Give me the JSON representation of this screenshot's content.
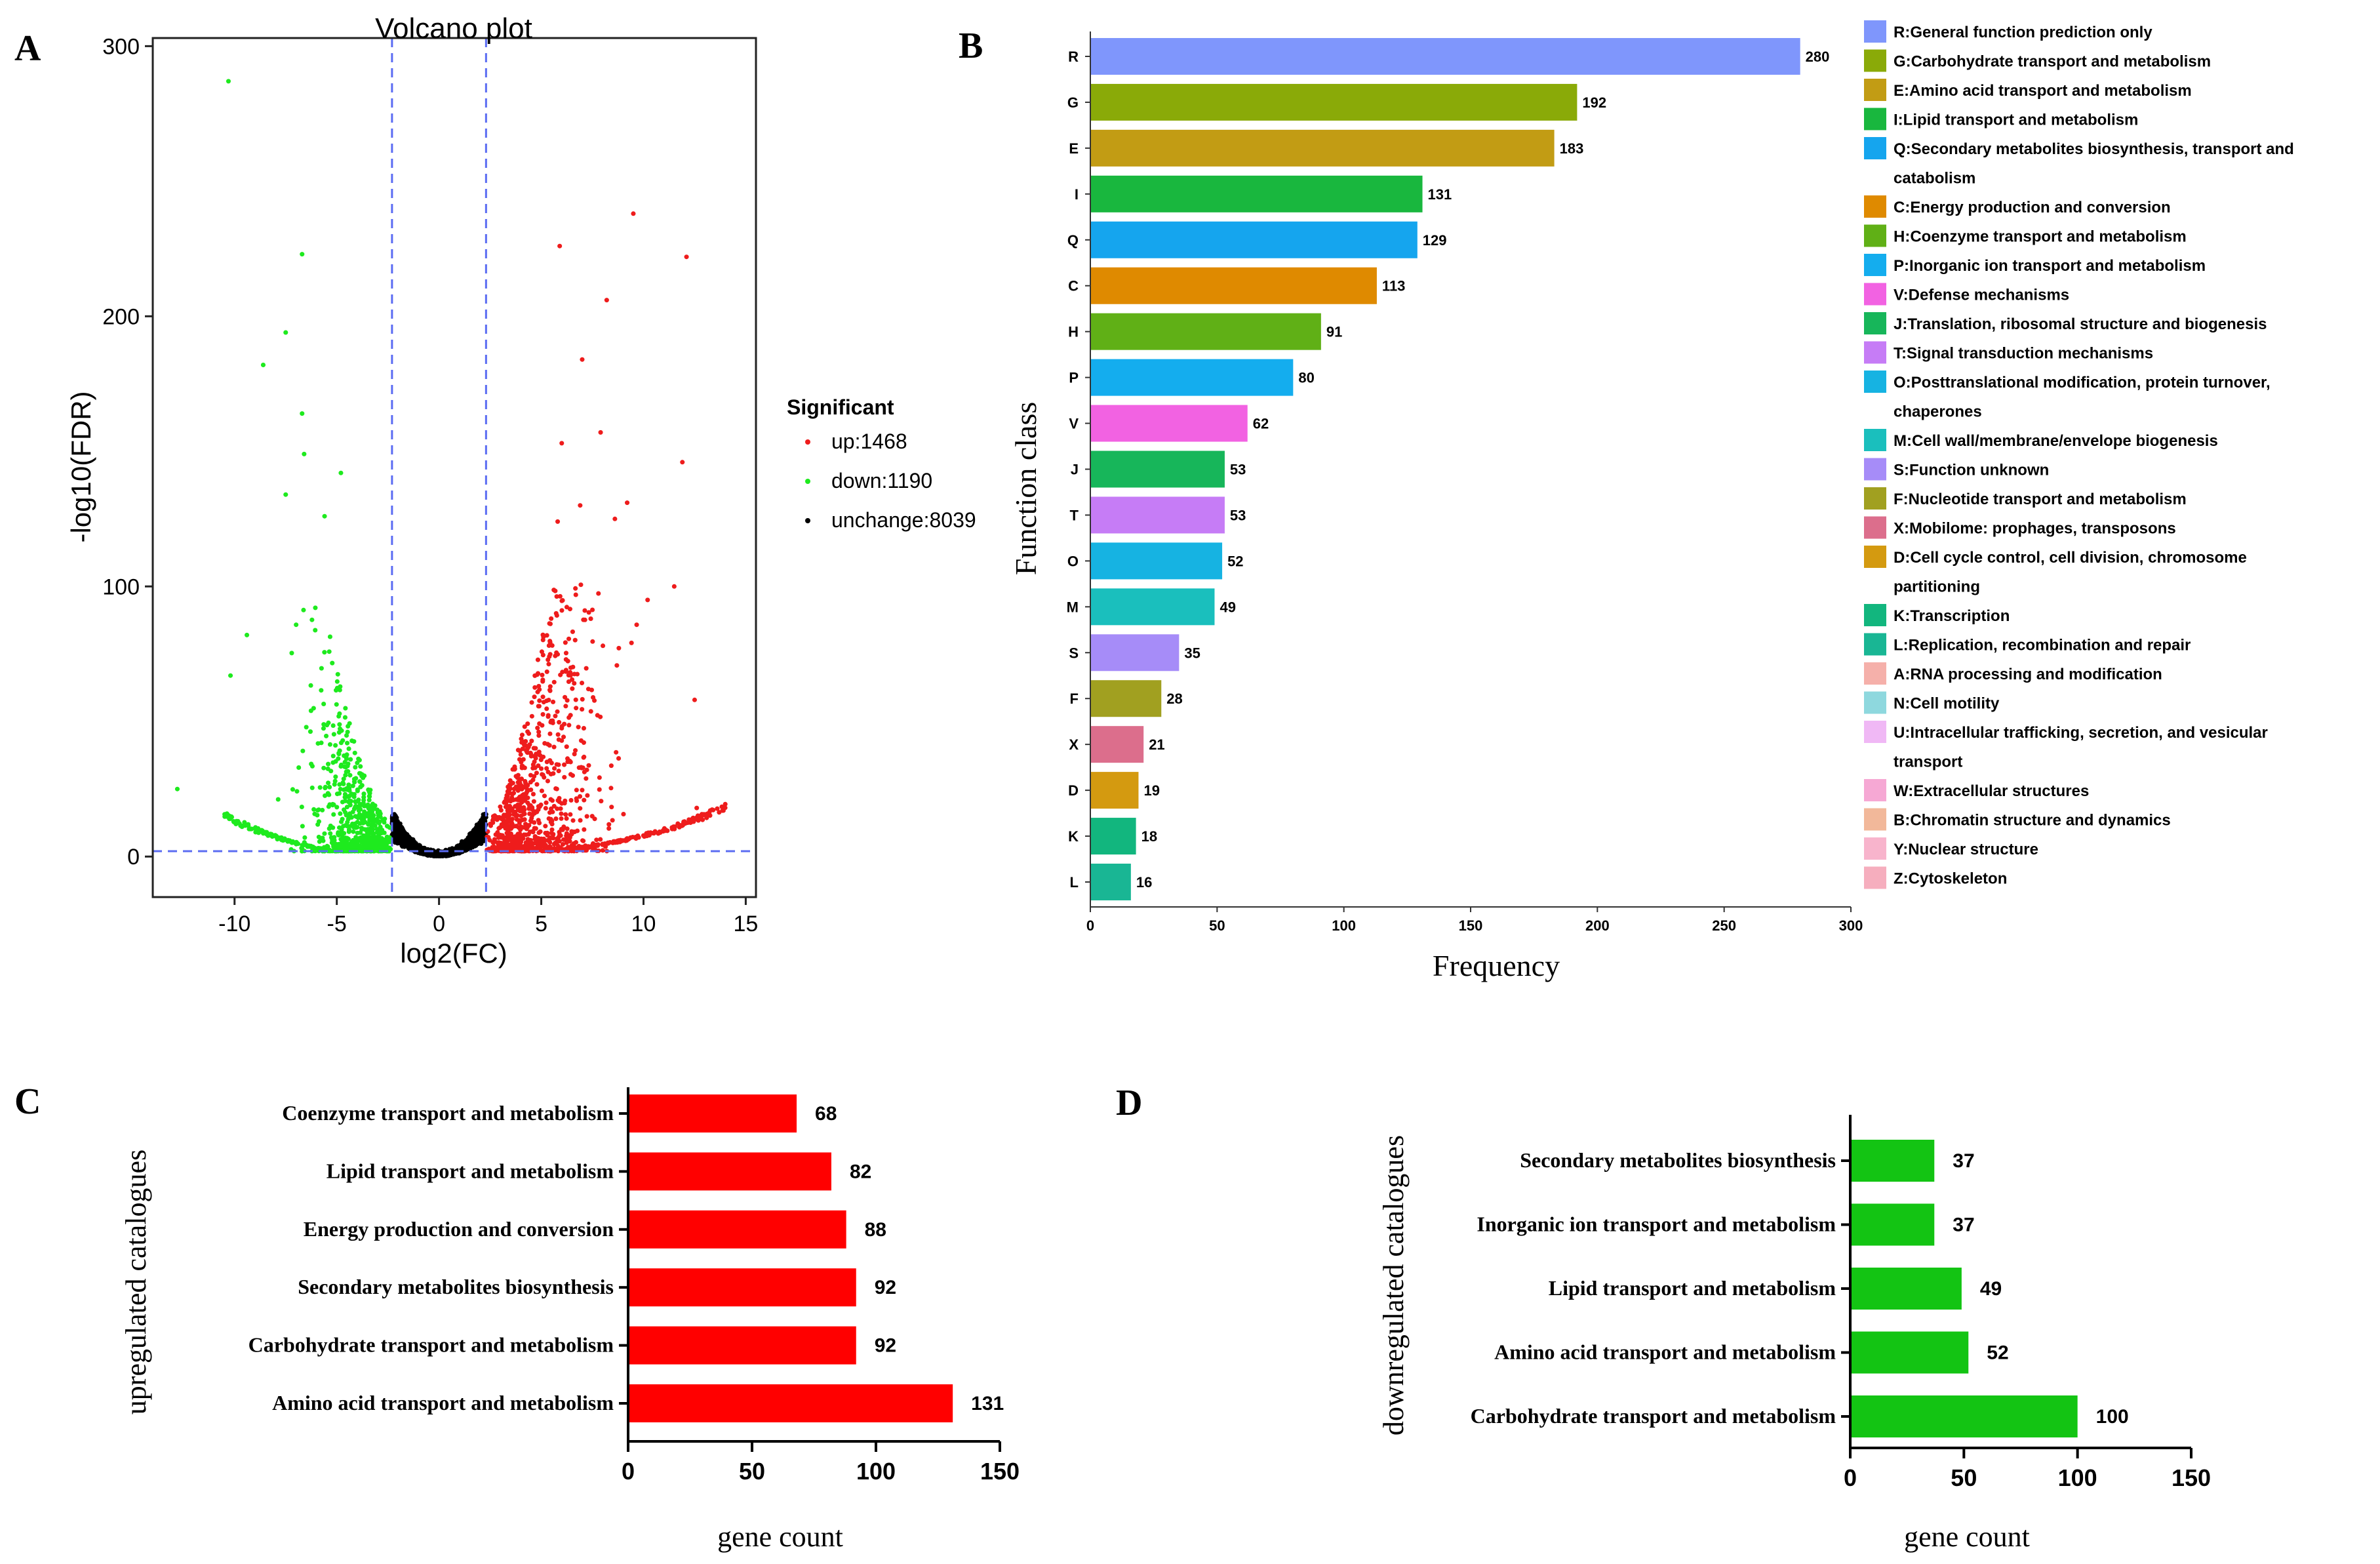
{
  "panels": {
    "a": "A",
    "b": "B",
    "c": "C",
    "d": "D"
  },
  "chart_data": [
    {
      "id": "volcano",
      "type": "scatter",
      "title": "Volcano plot",
      "xlabel": "log2(FC)",
      "ylabel": "-log10(FDR)",
      "xlim": [
        -14,
        15.5
      ],
      "ylim": [
        -15,
        303
      ],
      "xticks": [
        -10,
        -5,
        0,
        5,
        10,
        15
      ],
      "yticks": [
        0,
        100,
        200,
        300
      ],
      "thresholds": {
        "x": [
          -2.3,
          2.3
        ],
        "y": 2
      },
      "legend": {
        "title": "Significant",
        "items": [
          {
            "label": "up:1468",
            "color": "#ee1c1c"
          },
          {
            "label": "down:1190",
            "color": "#1eea1e"
          },
          {
            "label": "unchange:8039",
            "color": "#000000"
          }
        ]
      },
      "series": [
        {
          "name": "up",
          "count": 1468,
          "color": "#ee1c1c",
          "highlights": [
            [
              9.5,
              238
            ],
            [
              5.9,
              226
            ],
            [
              12.1,
              222
            ],
            [
              8.2,
              206
            ],
            [
              7,
              184
            ],
            [
              7.9,
              157
            ],
            [
              6,
              153
            ],
            [
              11.9,
              146
            ],
            [
              9.2,
              131
            ],
            [
              6.9,
              130
            ],
            [
              8.6,
              125
            ],
            [
              5.8,
              124
            ],
            [
              11.5,
              100
            ],
            [
              10.2,
              95
            ],
            [
              12.5,
              58
            ],
            [
              12.6,
              18
            ]
          ]
        },
        {
          "name": "down",
          "count": 1190,
          "color": "#1eea1e",
          "highlights": [
            [
              -10.3,
              287
            ],
            [
              -6.7,
              223
            ],
            [
              -7.5,
              194
            ],
            [
              -8.6,
              182
            ],
            [
              -6.7,
              164
            ],
            [
              -6.6,
              149
            ],
            [
              -4.8,
              142
            ],
            [
              -5.6,
              126
            ],
            [
              -7.5,
              134
            ],
            [
              -12.8,
              25
            ],
            [
              -10.2,
              67
            ],
            [
              -9.4,
              82
            ]
          ]
        },
        {
          "name": "unchange",
          "count": 8039,
          "color": "#000000"
        }
      ]
    },
    {
      "id": "cog",
      "type": "bar",
      "orientation": "horizontal",
      "xlabel": "Frequency",
      "ylabel": "Function class",
      "xlim": [
        0,
        300
      ],
      "xticks": [
        0,
        50,
        100,
        150,
        200,
        250,
        300
      ],
      "categories": [
        "R",
        "G",
        "E",
        "I",
        "Q",
        "C",
        "H",
        "P",
        "V",
        "J",
        "T",
        "O",
        "M",
        "S",
        "F",
        "X",
        "D",
        "K",
        "L"
      ],
      "values": [
        280,
        192,
        183,
        131,
        129,
        113,
        91,
        80,
        62,
        53,
        53,
        52,
        49,
        35,
        28,
        21,
        19,
        18,
        16
      ],
      "colors": [
        "#7f96fc",
        "#8aaa08",
        "#c29c14",
        "#19b73e",
        "#15a5ee",
        "#df8a00",
        "#60b016",
        "#14adee",
        "#f262e2",
        "#17b65a",
        "#c67cf6",
        "#16b3e2",
        "#1abfbd",
        "#a68cf8",
        "#a1a020",
        "#dc6e8c",
        "#d49a10",
        "#12b67e",
        "#19b694"
      ],
      "legend": [
        {
          "lines": [
            "R:General function prediction only"
          ],
          "color": "#7f96fc"
        },
        {
          "lines": [
            "G:Carbohydrate transport and metabolism"
          ],
          "color": "#8aaa08"
        },
        {
          "lines": [
            "E:Amino acid transport and metabolism"
          ],
          "color": "#c29c14"
        },
        {
          "lines": [
            "I:Lipid transport and metabolism"
          ],
          "color": "#19b73e"
        },
        {
          "lines": [
            "Q:Secondary metabolites biosynthesis, transport and",
            "catabolism"
          ],
          "color": "#15a5ee"
        },
        {
          "lines": [
            "C:Energy production and conversion"
          ],
          "color": "#df8a00"
        },
        {
          "lines": [
            "H:Coenzyme transport and metabolism"
          ],
          "color": "#60b016"
        },
        {
          "lines": [
            "P:Inorganic ion transport and metabolism"
          ],
          "color": "#14adee"
        },
        {
          "lines": [
            "V:Defense mechanisms"
          ],
          "color": "#f262e2"
        },
        {
          "lines": [
            "J:Translation, ribosomal structure and biogenesis"
          ],
          "color": "#17b65a"
        },
        {
          "lines": [
            "T:Signal transduction mechanisms"
          ],
          "color": "#c67cf6"
        },
        {
          "lines": [
            "O:Posttranslational modification, protein turnover,",
            "chaperones"
          ],
          "color": "#16b3e2"
        },
        {
          "lines": [
            "M:Cell wall/membrane/envelope biogenesis"
          ],
          "color": "#1abfbd"
        },
        {
          "lines": [
            "S:Function unknown"
          ],
          "color": "#a68cf8"
        },
        {
          "lines": [
            "F:Nucleotide transport and metabolism"
          ],
          "color": "#a1a020"
        },
        {
          "lines": [
            "X:Mobilome: prophages, transposons"
          ],
          "color": "#dc6e8c"
        },
        {
          "lines": [
            "D:Cell cycle control, cell division, chromosome",
            "partitioning"
          ],
          "color": "#d49a10"
        },
        {
          "lines": [
            "K:Transcription"
          ],
          "color": "#12b67e"
        },
        {
          "lines": [
            "L:Replication, recombination and repair"
          ],
          "color": "#19b694"
        },
        {
          "lines": [
            "A:RNA processing and modification"
          ],
          "color": "#f5b0aa"
        },
        {
          "lines": [
            "N:Cell motility"
          ],
          "color": "#8ed8de"
        },
        {
          "lines": [
            "U:Intracellular trafficking, secretion, and vesicular",
            "transport"
          ],
          "color": "#f0b8f5"
        },
        {
          "lines": [
            "W:Extracellular structures"
          ],
          "color": "#f6a8d4"
        },
        {
          "lines": [
            "B:Chromatin structure and dynamics"
          ],
          "color": "#f2b89a"
        },
        {
          "lines": [
            "Y:Nuclear structure"
          ],
          "color": "#f8b4cc"
        },
        {
          "lines": [
            "Z:Cytoskeleton"
          ],
          "color": "#f6aebe"
        }
      ]
    },
    {
      "id": "upregulated",
      "type": "bar",
      "orientation": "horizontal",
      "xlabel": "gene count",
      "ylabel": "upregulated catalogues",
      "xlim": [
        0,
        150
      ],
      "xticks": [
        0,
        50,
        100,
        150
      ],
      "color": "#ff0000",
      "categories": [
        "Coenzyme transport and metabolism",
        "Lipid transport and metabolism",
        "Energy production and conversion",
        "Secondary metabolites biosynthesis",
        "Carbohydrate transport and metabolism",
        "Amino acid transport and metabolism"
      ],
      "values": [
        68,
        82,
        88,
        92,
        92,
        131
      ]
    },
    {
      "id": "downregulated",
      "type": "bar",
      "orientation": "horizontal",
      "xlabel": "gene count",
      "ylabel": "downregulated catalogues",
      "xlim": [
        0,
        150
      ],
      "xticks": [
        0,
        50,
        100,
        150
      ],
      "color": "#13c413",
      "categories": [
        "Secondary metabolites biosynthesis",
        "Inorganic ion transport and metabolism",
        "Lipid transport and metabolism",
        "Amino acid transport and metabolism",
        "Carbohydrate transport and metabolism"
      ],
      "values": [
        37,
        37,
        49,
        52,
        100
      ]
    }
  ]
}
